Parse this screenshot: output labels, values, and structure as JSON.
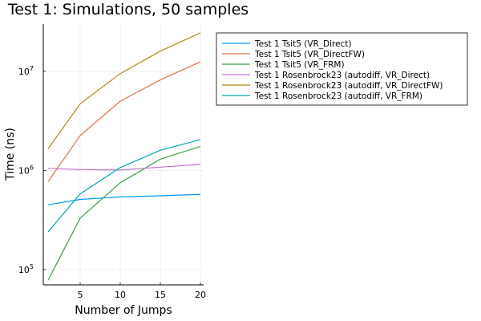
{
  "chart_data": {
    "type": "line",
    "title": "Test 1: Simulations, 50 samples",
    "xlabel": "Number of Jumps",
    "ylabel": "Time (ns)",
    "yscale": "log10",
    "xlim": [
      0.4,
      20.4
    ],
    "ylim": [
      70000,
      30000000
    ],
    "xticks": [
      5,
      10,
      15,
      20
    ],
    "yticks": [
      {
        "value": 100000,
        "base": "10",
        "exp": "5"
      },
      {
        "value": 1000000,
        "base": "10",
        "exp": "6"
      },
      {
        "value": 10000000,
        "base": "10",
        "exp": "7"
      }
    ],
    "grid": true,
    "legend_position": "outside top-right",
    "x": [
      1,
      5,
      10,
      15,
      20
    ],
    "series": [
      {
        "name": "Test 1 Tsit5 (VR_Direct)",
        "color": "#009AFA",
        "values": [
          450000,
          510000,
          540000,
          555000,
          575000
        ]
      },
      {
        "name": "Test 1 Tsit5 (VR_DirectFW)",
        "color": "#E36F47",
        "values": [
          770000,
          2250000,
          5000000,
          8200000,
          12500000
        ]
      },
      {
        "name": "Test 1 Tsit5 (VR_FRM)",
        "color": "#3EA44E",
        "values": [
          78000,
          330000,
          750000,
          1300000,
          1750000
        ]
      },
      {
        "name": "Test 1 Rosenbrock23 (autodiff, VR_Direct)",
        "color": "#C371D2",
        "values": [
          1050000,
          1020000,
          1010000,
          1080000,
          1150000
        ]
      },
      {
        "name": "Test 1 Rosenbrock23 (autodiff, VR_DirectFW)",
        "color": "#AC8E18",
        "values": [
          1650000,
          4700000,
          9500000,
          16000000,
          24500000
        ]
      },
      {
        "name": "Test 1 Rosenbrock23 (autodiff, VR_FRM)",
        "color": "#00A9AD",
        "values": [
          240000,
          580000,
          1070000,
          1600000,
          2050000
        ]
      }
    ]
  }
}
